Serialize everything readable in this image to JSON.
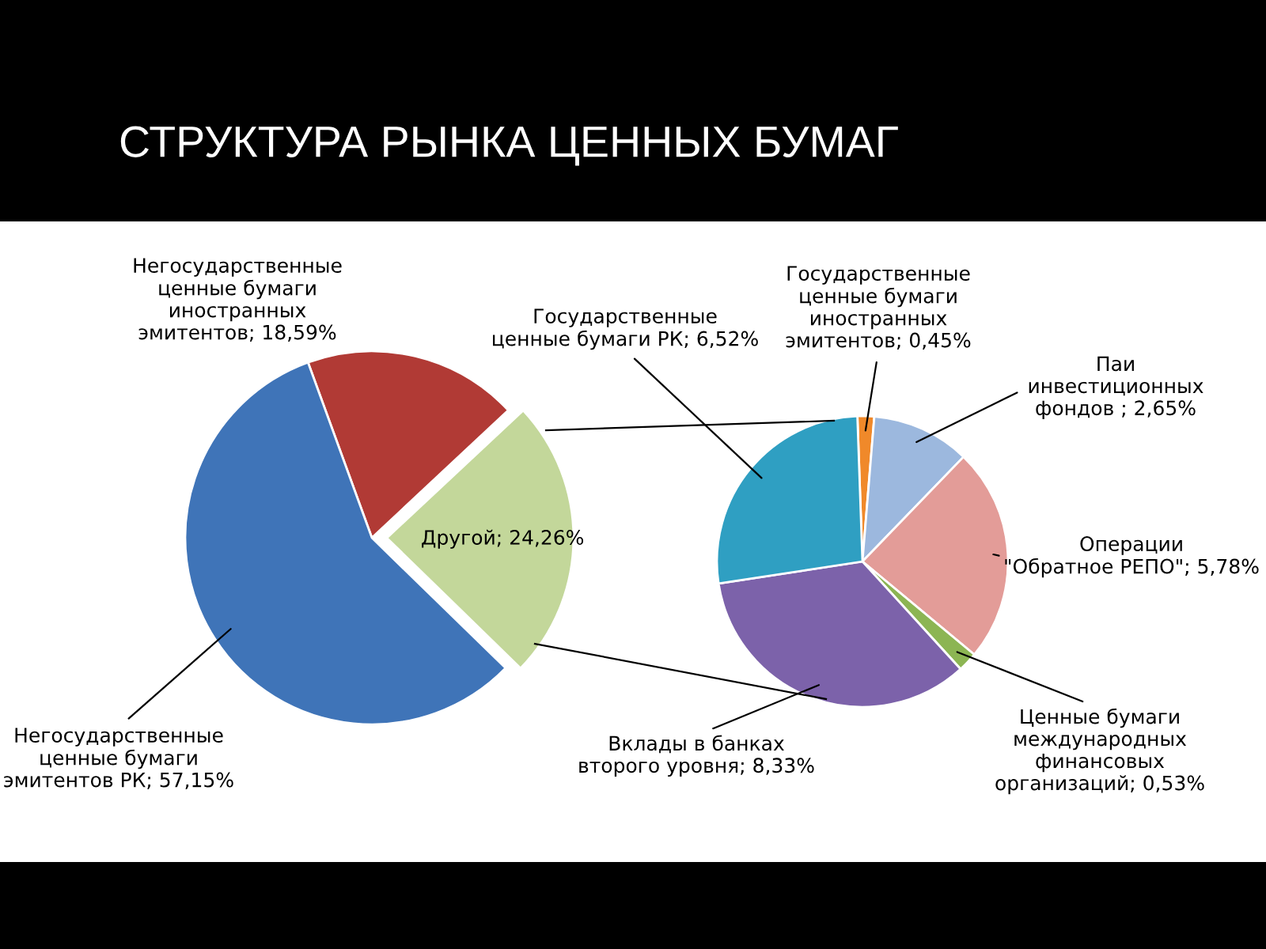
{
  "chart_data": [
    {
      "type": "pie",
      "title": "СТРУКТУРА РЫНКА ЦЕННЫХ БУМАГ",
      "categories": [
        "Негосударственные\nценные бумаги\nиностранных\nэмитентов",
        "Другой",
        "Негосударственные\nценные бумаги\nэмитентов РК"
      ],
      "values": [
        18.59,
        24.26,
        57.15
      ],
      "value_labels": [
        "18,59%",
        "24,26%",
        "57,15%"
      ],
      "colors": [
        "#b13a35",
        "#c3d79a",
        "#3f74b8"
      ]
    },
    {
      "type": "pie",
      "categories": [
        "Государственные\nценные бумаги\nиностранных\nэмитентов",
        "Паи\nинвестиционных\nфондов",
        "Операции\n\"Обратное РЕПО\"",
        "Ценные бумаги\nмеждународных\nфинансовых\nорганизаций",
        "Вклады в банках\nвторого уровня",
        "Государственные\nценные бумаги РК"
      ],
      "values": [
        0.45,
        2.65,
        5.78,
        0.53,
        8.33,
        6.52
      ],
      "value_labels": [
        "0,45%",
        "2,65%",
        "5,78%",
        "0,53%",
        "8,33%",
        "6,52%"
      ],
      "colors": [
        "#f0892a",
        "#9cb8de",
        "#e39c98",
        "#8cb553",
        "#7c62aa",
        "#2f9fc2"
      ]
    }
  ]
}
